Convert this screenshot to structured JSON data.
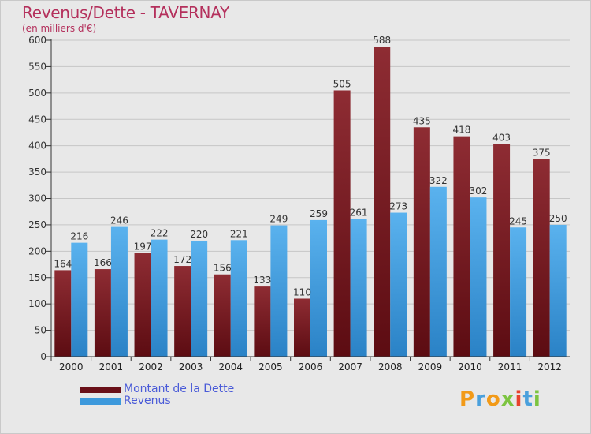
{
  "title": "Revenus/Dette - TAVERNAY",
  "subtitle": "(en milliers d'€)",
  "colors": {
    "background": "#e8e8e8",
    "title": "#b4305c",
    "dette": "#7a1a24",
    "revenus": "#3d99dc",
    "legend_text": "#4a5bd8",
    "grid": "#c6c6c6"
  },
  "legend": {
    "dette_label": "Montant de la Dette",
    "revenus_label": "Revenus"
  },
  "logo": {
    "text": "Proxiti"
  },
  "chart_data": {
    "type": "bar",
    "categories": [
      "2000",
      "2001",
      "2002",
      "2003",
      "2004",
      "2005",
      "2006",
      "2007",
      "2008",
      "2009",
      "2010",
      "2011",
      "2012"
    ],
    "series": [
      {
        "name": "Montant de la Dette",
        "values": [
          164,
          166,
          197,
          172,
          156,
          133,
          110,
          505,
          588,
          435,
          418,
          403,
          375
        ]
      },
      {
        "name": "Revenus",
        "values": [
          216,
          246,
          222,
          220,
          221,
          249,
          259,
          261,
          273,
          322,
          302,
          245,
          250
        ]
      }
    ],
    "ylim": [
      0,
      600
    ],
    "yticks": [
      0,
      50,
      100,
      150,
      200,
      250,
      300,
      350,
      400,
      450,
      500,
      550,
      600
    ],
    "grid": true,
    "legend_position": "bottom-left"
  }
}
